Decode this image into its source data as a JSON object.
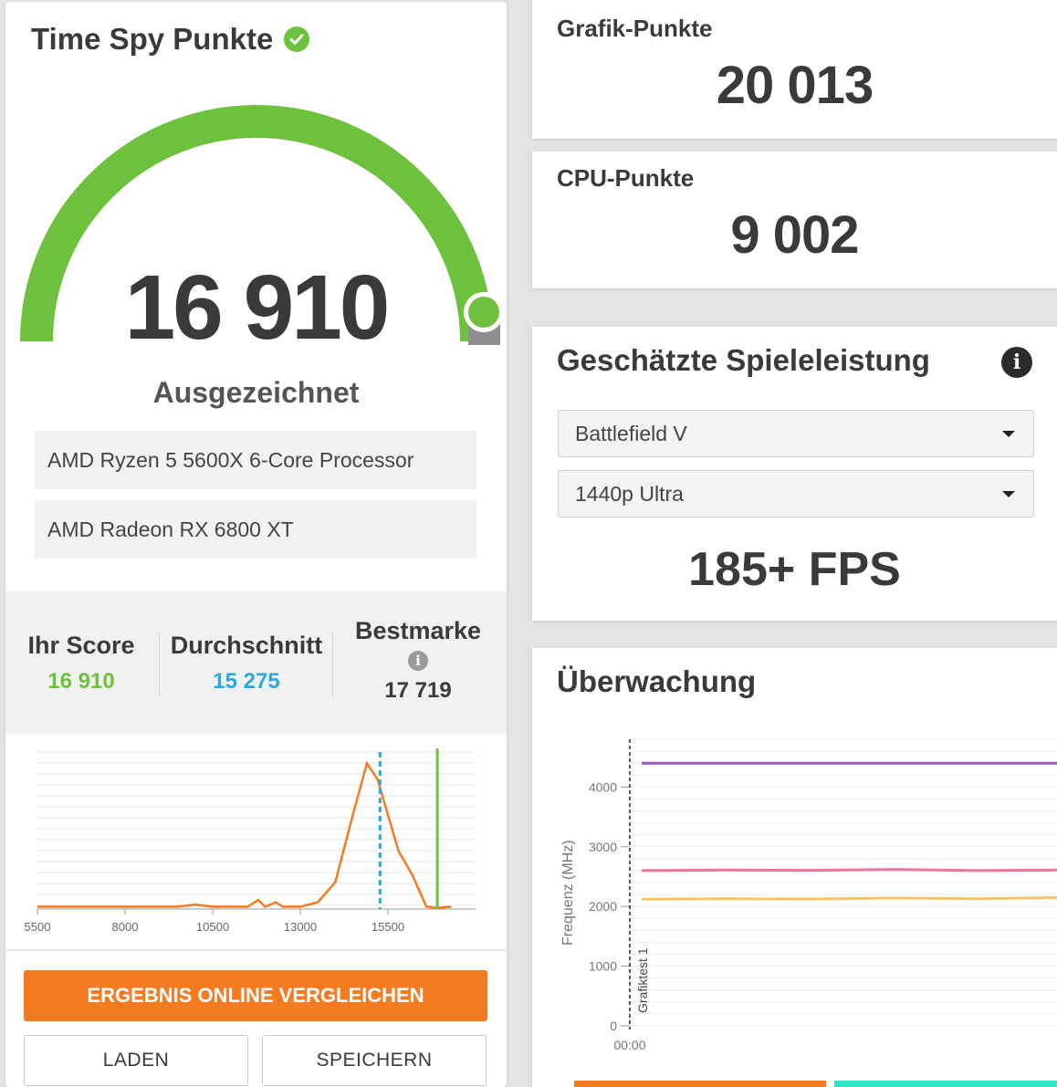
{
  "left": {
    "title": "Time Spy Punkte",
    "title_icon": "check-circle-icon",
    "score": "16 910",
    "rating": "Ausgezeichnet",
    "gauge_fill": 1.0,
    "hardware": [
      "AMD Ryzen 5 5600X 6-Core Processor",
      "AMD Radeon RX 6800 XT"
    ],
    "stats": {
      "your_score_label": "Ihr Score",
      "your_score_value": "16 910",
      "average_label": "Durchschnitt",
      "average_value": "15 275",
      "best_label": "Bestmarke",
      "best_value": "17 719"
    },
    "compare_button": "ERGEBNIS ONLINE VERGLEICHEN",
    "load_button": "LADEN",
    "save_button": "SPEICHERN"
  },
  "graphics": {
    "label": "Grafik-Punkte",
    "value": "20 013"
  },
  "cpu": {
    "label": "CPU-Punkte",
    "value": "9 002"
  },
  "game": {
    "title": "Geschätzte Spieleleistung",
    "game_select": "Battlefield V",
    "preset_select": "1440p Ultra",
    "fps": "185+ FPS"
  },
  "monitor": {
    "title": "Überwachung"
  },
  "colors": {
    "green": "#6ec13c",
    "blue": "#2aa8e0",
    "orange": "#f47b20",
    "purple": "#9b59c9",
    "pink": "#e8779e",
    "yellow": "#f2c46a",
    "teal": "#2fe3c6"
  },
  "chart_data": [
    {
      "type": "line",
      "x_ticks": [
        5500,
        8000,
        10500,
        13000,
        15500
      ],
      "xlim": [
        5500,
        18000
      ],
      "series": [
        {
          "x": [
            5500,
            6500,
            7500,
            8500,
            9500,
            10000,
            10500,
            11000,
            11500,
            11800,
            12000,
            12300,
            12500,
            13000,
            13500,
            14000,
            14500,
            14900,
            15200,
            15500,
            15800,
            16200,
            16600,
            16900,
            17300
          ],
          "y": [
            1,
            1,
            1,
            1,
            1,
            2,
            1,
            1,
            1,
            4,
            1,
            3,
            1,
            1,
            3,
            12,
            42,
            65,
            58,
            42,
            26,
            15,
            1,
            0.5,
            1
          ]
        }
      ],
      "markers": {
        "average": 15275,
        "your_score": 16910
      }
    },
    {
      "type": "line",
      "ylabel": "Frequenz (MHz)",
      "y_ticks": [
        0,
        1000,
        2000,
        3000,
        4000
      ],
      "ylim": [
        0,
        4800
      ],
      "x_ticks": [
        "00:00"
      ],
      "annotations": [
        "Grafiktest 1"
      ],
      "series": [
        {
          "values": [
            4400,
            4400
          ]
        },
        {
          "values": [
            2600,
            2610,
            2605,
            2620,
            2600,
            2610
          ]
        },
        {
          "values": [
            2120,
            2130,
            2125,
            2140,
            2130,
            2150
          ]
        }
      ]
    }
  ]
}
